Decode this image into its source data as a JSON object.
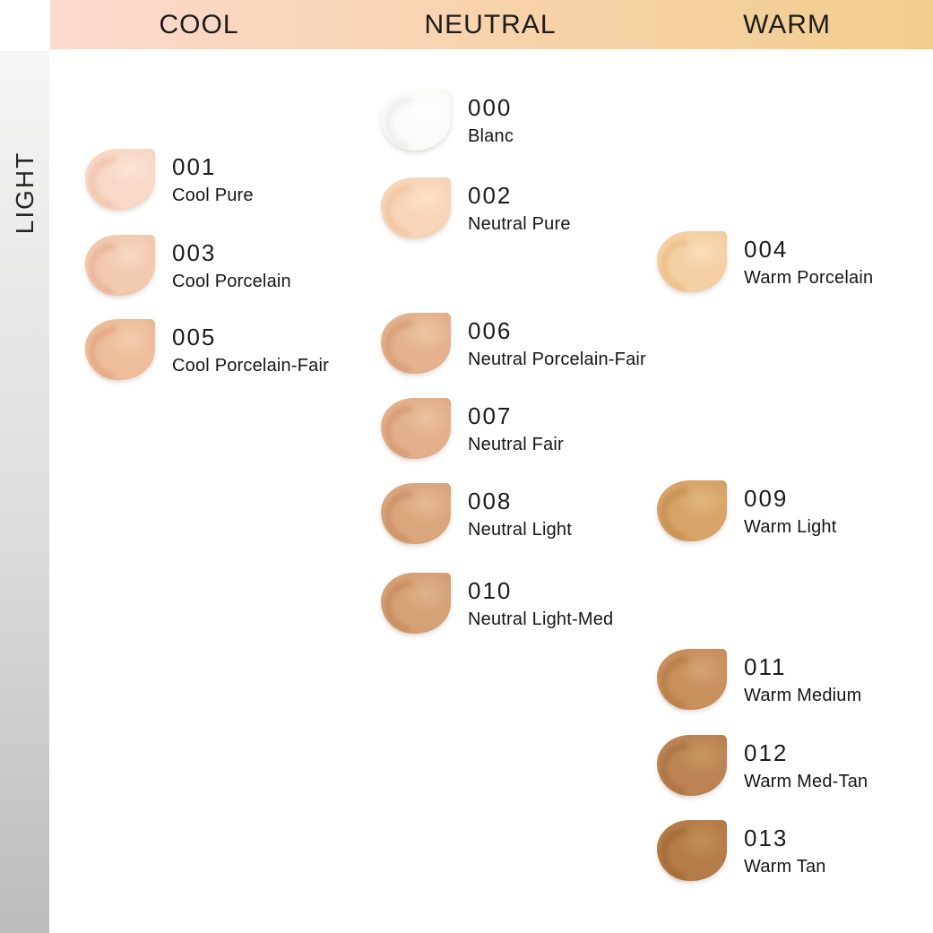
{
  "header": {
    "columns": [
      {
        "id": "cool",
        "label": "COOL"
      },
      {
        "id": "neutral",
        "label": "NEUTRAL"
      },
      {
        "id": "warm",
        "label": "WARM"
      }
    ]
  },
  "sidebar": {
    "row_label": "LIGHT"
  },
  "theme": {
    "background": "#ffffff",
    "text_color": "#1b1b1b",
    "header_gradient": [
      "#fbd9ce",
      "#f8d3ac",
      "#f2cd8e"
    ],
    "sidebar_gradient": [
      "#f5f5f4",
      "#bcbcbc"
    ]
  },
  "shades": [
    {
      "code": "000",
      "name": "Blanc",
      "column": "neutral",
      "colors": {
        "base": "#fbfbfa",
        "shadow": "#e2dfdc",
        "highlight": "#ffffff"
      }
    },
    {
      "code": "001",
      "name": "Cool Pure",
      "column": "cool",
      "colors": {
        "base": "#f8d8c6",
        "shadow": "#e9b294",
        "highlight": "#fce4d6"
      }
    },
    {
      "code": "002",
      "name": "Neutral Pure",
      "column": "neutral",
      "colors": {
        "base": "#f8d5b8",
        "shadow": "#eab78c",
        "highlight": "#fbe2c9"
      }
    },
    {
      "code": "003",
      "name": "Cool Porcelain",
      "column": "cool",
      "colors": {
        "base": "#f2cab1",
        "shadow": "#df a07e",
        "highlight": "#f7d9c4"
      }
    },
    {
      "code": "004",
      "name": "Warm Porcelain",
      "column": "warm",
      "colors": {
        "base": "#f5d0a4",
        "shadow": "#e6ab72",
        "highlight": "#f9ddbb"
      }
    },
    {
      "code": "005",
      "name": "Cool Porcelain-Fair",
      "column": "cool",
      "colors": {
        "base": "#eebd9b",
        "shadow": "#d8936a",
        "highlight": "#f3ccae"
      }
    },
    {
      "code": "006",
      "name": "Neutral Porcelain-Fair",
      "column": "neutral",
      "colors": {
        "base": "#e4b28e",
        "shadow": "#c98a60",
        "highlight": "#eec6a2"
      }
    },
    {
      "code": "007",
      "name": "Neutral Fair",
      "column": "neutral",
      "colors": {
        "base": "#e2b08b",
        "shadow": "#c8875c",
        "highlight": "#ecc29e"
      }
    },
    {
      "code": "008",
      "name": "Neutral Light",
      "column": "neutral",
      "colors": {
        "base": "#daa77d",
        "shadow": "#bd7b4e",
        "highlight": "#e6ba92"
      }
    },
    {
      "code": "009",
      "name": "Warm Light",
      "column": "warm",
      "colors": {
        "base": "#d7a368",
        "shadow": "#b97c3e",
        "highlight": "#e2b77f"
      }
    },
    {
      "code": "010",
      "name": "Neutral Light-Med",
      "column": "neutral",
      "colors": {
        "base": "#d5a176",
        "shadow": "#b57846",
        "highlight": "#e0b38b"
      }
    },
    {
      "code": "011",
      "name": "Warm Medium",
      "column": "warm",
      "colors": {
        "base": "#c8905c",
        "shadow": "#a86b33",
        "highlight": "#d5a471"
      }
    },
    {
      "code": "012",
      "name": "Warm Med-Tan",
      "column": "warm",
      "colors": {
        "base": "#bc8455",
        "shadow": "#9d622f",
        "highlight": "#c99860"
      }
    },
    {
      "code": "013",
      "name": "Warm Tan",
      "column": "warm",
      "colors": {
        "base": "#b57c4a",
        "shadow": "#935b26",
        "highlight": "#c39058"
      }
    }
  ]
}
